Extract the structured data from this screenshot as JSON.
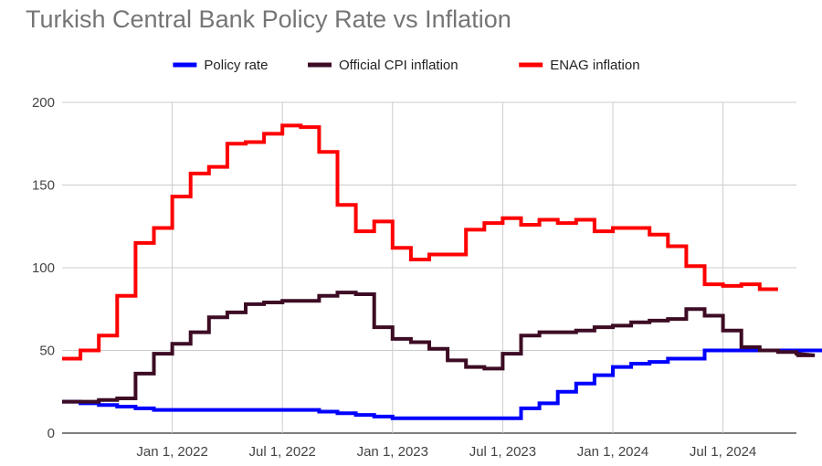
{
  "chart_data": {
    "type": "line",
    "step": true,
    "title": "Turkish Central Bank Policy Rate vs Inflation",
    "xlabel": "",
    "ylabel": "",
    "x_tick_labels": [
      "Jan 1, 2022",
      "Jul 1, 2022",
      "Jan 1, 2023",
      "Jul 1, 2023",
      "Jan 1, 2024",
      "Jul 1, 2024"
    ],
    "x_start": "2021-07",
    "ylim": [
      0,
      200
    ],
    "y_ticks": [
      0,
      50,
      100,
      150,
      200
    ],
    "grid": true,
    "legend_position": "top",
    "x": [
      "2021-07",
      "2021-08",
      "2021-09",
      "2021-10",
      "2021-11",
      "2021-12",
      "2022-01",
      "2022-02",
      "2022-03",
      "2022-04",
      "2022-05",
      "2022-06",
      "2022-07",
      "2022-08",
      "2022-09",
      "2022-10",
      "2022-11",
      "2022-12",
      "2023-01",
      "2023-02",
      "2023-03",
      "2023-04",
      "2023-05",
      "2023-06",
      "2023-07",
      "2023-08",
      "2023-09",
      "2023-10",
      "2023-11",
      "2023-12",
      "2024-01",
      "2024-02",
      "2024-03",
      "2024-04",
      "2024-05",
      "2024-06",
      "2024-07",
      "2024-08",
      "2024-09",
      "2024-10",
      "2024-11",
      "2024-12",
      "2025-01"
    ],
    "series": [
      {
        "name": "Policy rate",
        "color": "#0000ff",
        "values": [
          19,
          18,
          17,
          16,
          15,
          14,
          14,
          14,
          14,
          14,
          14,
          14,
          14,
          14,
          13,
          12,
          11,
          10,
          9,
          9,
          9,
          9,
          9,
          9,
          9,
          15,
          18,
          25,
          30,
          35,
          40,
          42,
          43,
          45,
          45,
          50,
          50,
          50,
          50,
          50,
          50,
          50,
          50
        ]
      },
      {
        "name": "Official CPI inflation",
        "color": "#3d0c24",
        "values": [
          19,
          19,
          20,
          21,
          36,
          48,
          54,
          61,
          70,
          73,
          78,
          79,
          80,
          80,
          83,
          85,
          84,
          64,
          57,
          55,
          51,
          44,
          40,
          39,
          48,
          59,
          61,
          61,
          62,
          64,
          65,
          67,
          68,
          69,
          75,
          71,
          62,
          52,
          50,
          49,
          48,
          47,
          null
        ]
      },
      {
        "name": "ENAG inflation",
        "color": "#ff0000",
        "values": [
          45,
          50,
          59,
          83,
          115,
          124,
          143,
          157,
          161,
          175,
          176,
          181,
          186,
          185,
          170,
          138,
          122,
          128,
          112,
          105,
          108,
          108,
          123,
          127,
          130,
          126,
          129,
          127,
          129,
          122,
          124,
          124,
          120,
          113,
          101,
          90,
          89,
          90,
          87,
          null,
          null,
          null,
          null
        ]
      }
    ]
  }
}
